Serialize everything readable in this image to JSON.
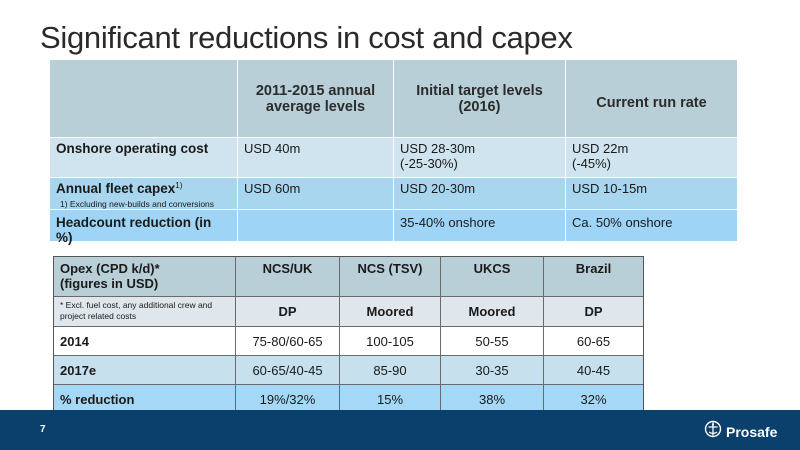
{
  "title": "Significant reductions in cost and capex",
  "top_table": {
    "headers": [
      "",
      "2011-2015 annual average levels",
      "Initial target levels (2016)",
      "Current run rate"
    ],
    "rows": [
      {
        "label": "Onshore operating cost",
        "label_sup": "",
        "values": [
          "USD 40m",
          "USD 28-30m",
          "USD 22m"
        ],
        "subvalues": [
          "",
          "(-25-30%)",
          "(-45%)"
        ]
      },
      {
        "label": "Annual fleet capex",
        "label_sup": "1)",
        "values": [
          "USD 60m",
          "USD 20-30m",
          "USD 10-15m"
        ],
        "subvalues": [
          "",
          "",
          ""
        ]
      },
      {
        "label": "Headcount reduction (in %)",
        "label_sup": "",
        "values": [
          "",
          "35-40% onshore",
          "Ca. 50% onshore"
        ],
        "subvalues": [
          "",
          "",
          ""
        ]
      }
    ],
    "footnote": "1)     Excluding new-builds and conversions"
  },
  "bottom_table": {
    "header_label": "Opex (CPD k/d)*\n(figures in USD)",
    "columns": [
      "NCS/UK",
      "NCS (TSV)",
      "UKCS",
      "Brazil"
    ],
    "note": "* Excl. fuel cost, any additional crew and project related costs",
    "types": [
      "DP",
      "Moored",
      "Moored",
      "DP"
    ],
    "rows": [
      {
        "label": "2014",
        "values": [
          "75-80/60-65",
          "100-105",
          "50-55",
          "60-65"
        ]
      },
      {
        "label": "2017e",
        "values": [
          "60-65/40-45",
          "85-90",
          "30-35",
          "40-45"
        ]
      },
      {
        "label": "% reduction",
        "values": [
          "19%/32%",
          "15%",
          "38%",
          "32%"
        ]
      }
    ]
  },
  "footer": {
    "page_number": "7",
    "brand": "Prosafe",
    "logo_icon": "prosafe-emblem-icon"
  }
}
